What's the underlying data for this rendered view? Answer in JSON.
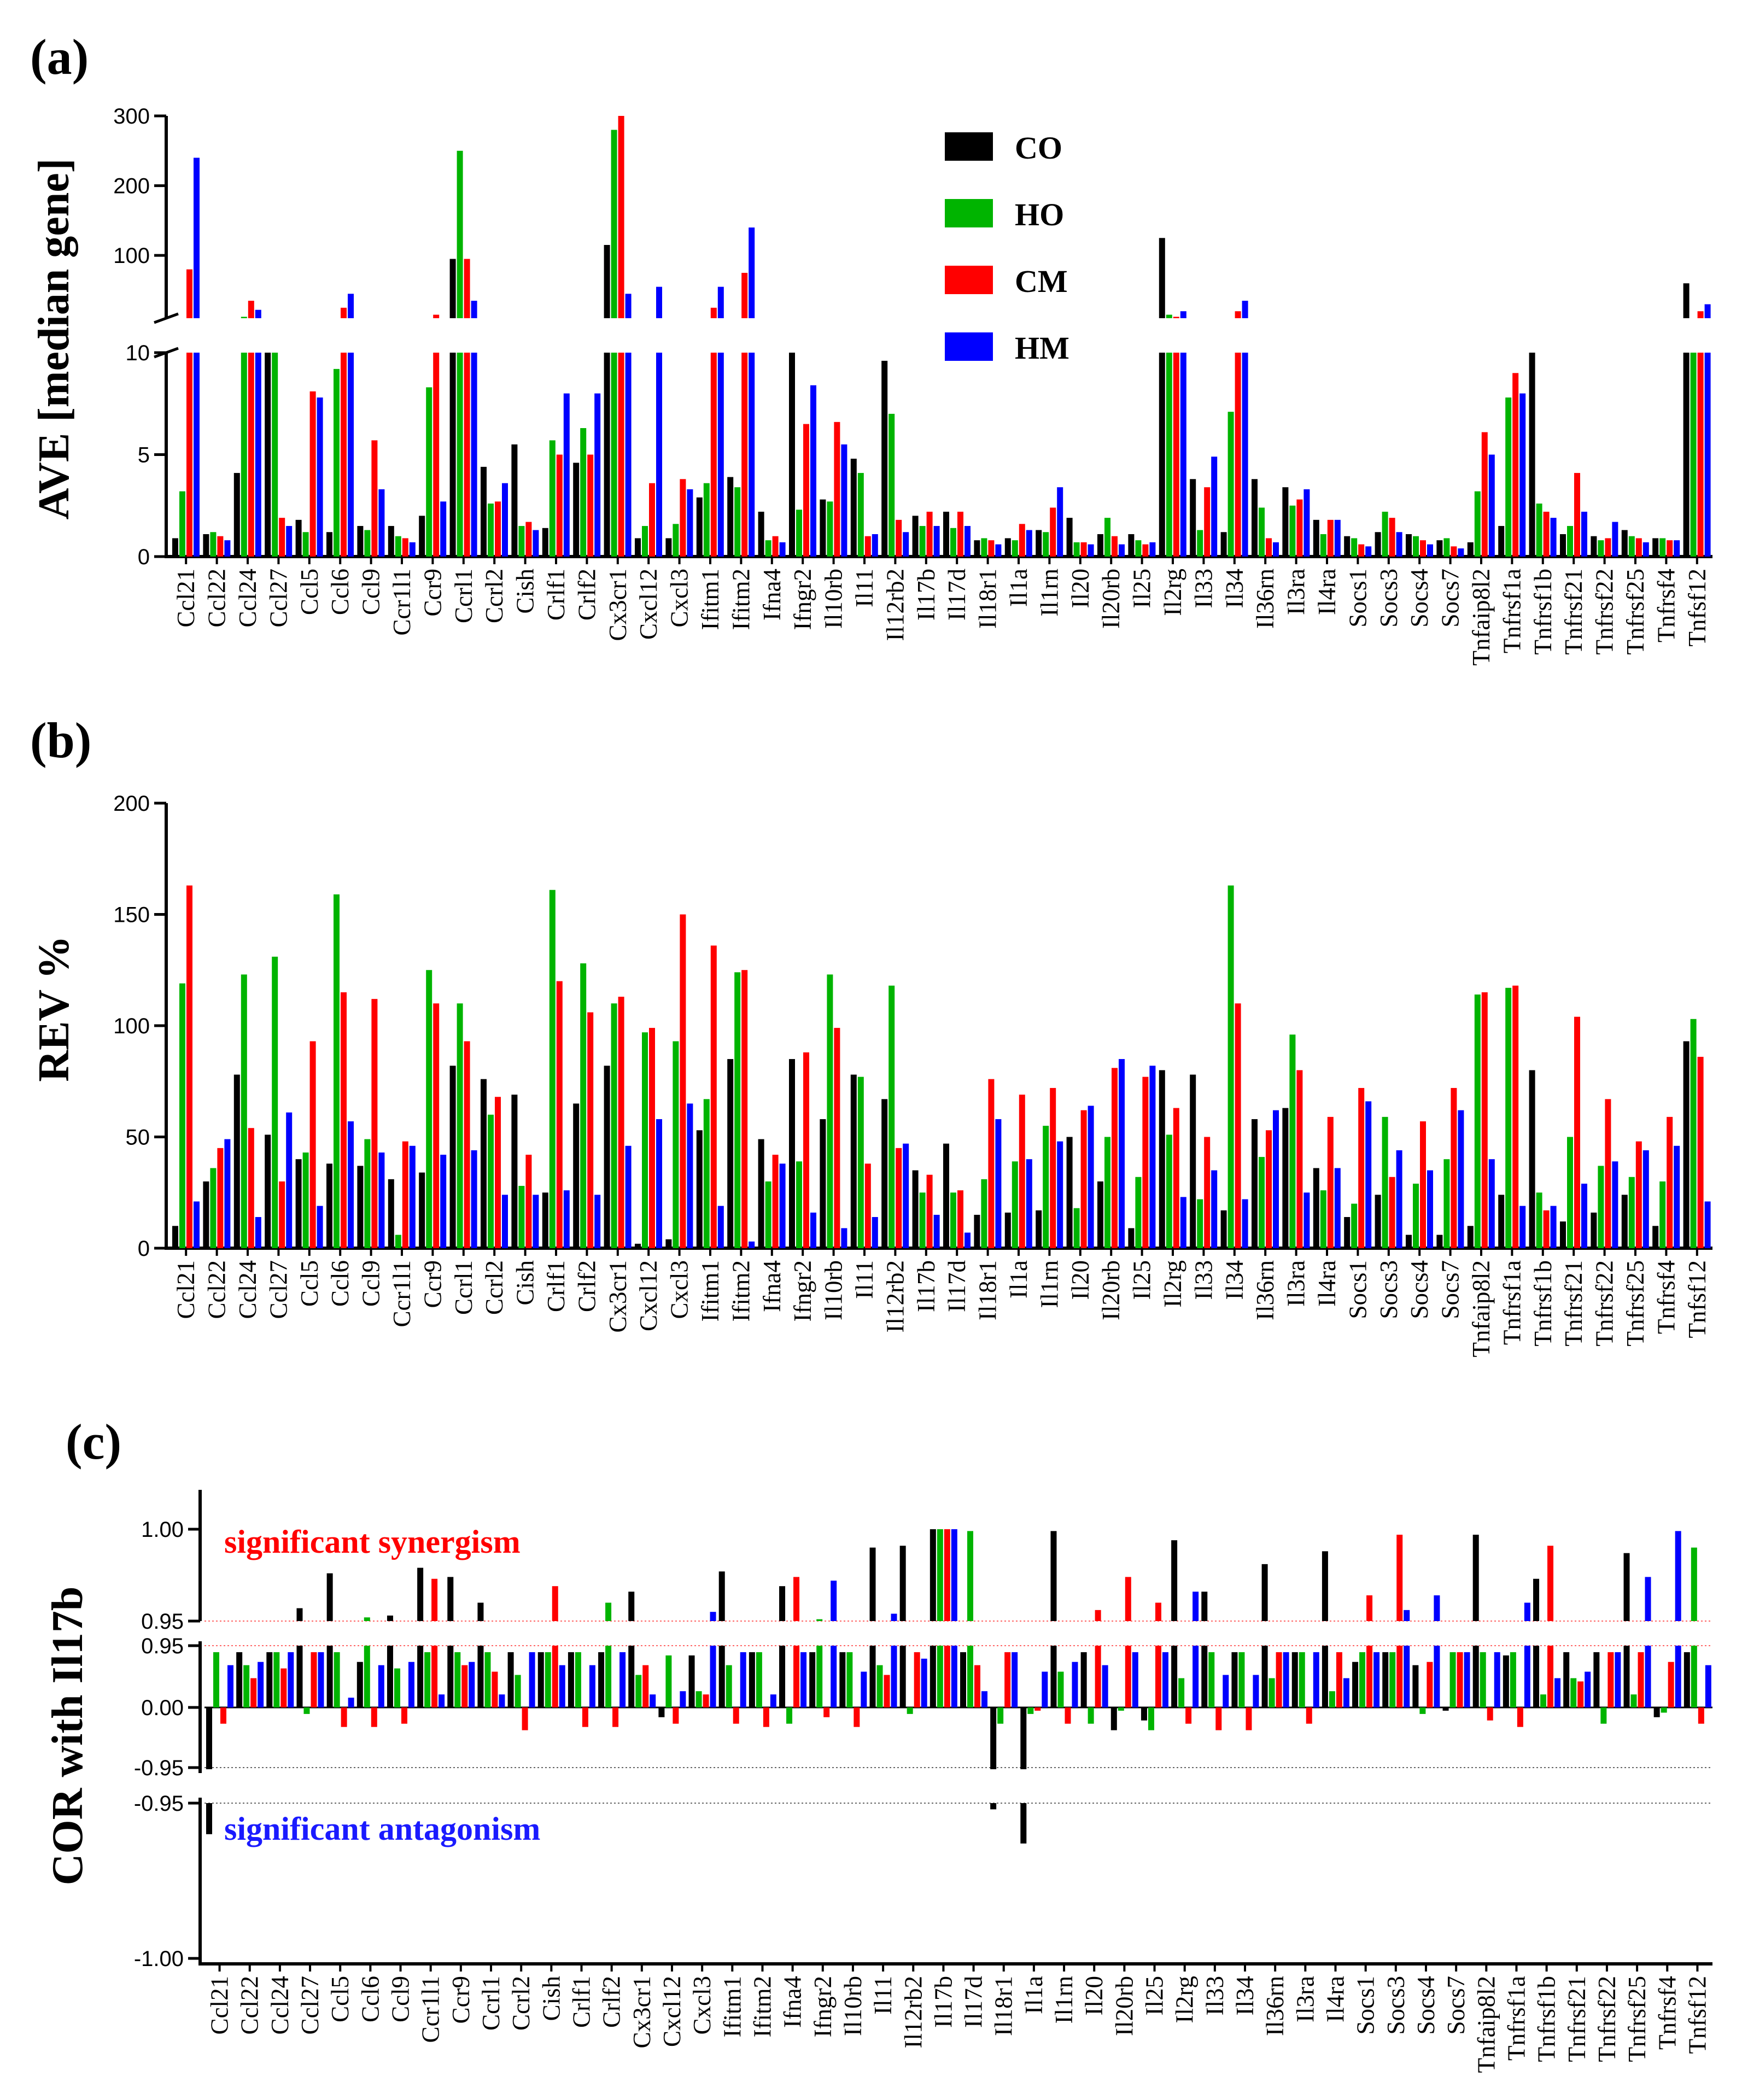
{
  "panels": {
    "a": {
      "letter": "(a)",
      "ylabel": "AVE [median gene]"
    },
    "b": {
      "letter": "(b)",
      "ylabel": "REV %"
    },
    "c": {
      "letter": "(c)",
      "ylabel": "COR with Il17b",
      "annot_syn": "significant synergism",
      "annot_ant": "significant antagonism"
    }
  },
  "colors": {
    "CO": "#000000",
    "HO": "#00b400",
    "CM": "#ff0000",
    "HM": "#0000ff",
    "syn": "#ff0000",
    "ant": "#1a1aff"
  },
  "legend": [
    "CO",
    "HO",
    "CM",
    "HM"
  ],
  "chart_data": [
    {
      "type": "bar",
      "title": "",
      "ylabel": "AVE [median gene]",
      "categories": [
        "Ccl21",
        "Ccl22",
        "Ccl24",
        "Ccl27",
        "Ccl5",
        "Ccl6",
        "Ccl9",
        "Ccr1l1",
        "Ccr9",
        "Ccrl1",
        "Ccrl2",
        "Cish",
        "Crlf1",
        "Crlf2",
        "Cx3cr1",
        "Cxcl12",
        "Cxcl3",
        "Ifitm1",
        "Ifitm2",
        "Ifna4",
        "Ifngr2",
        "Il10rb",
        "Il11",
        "Il12rb2",
        "Il17b",
        "Il17d",
        "Il18r1",
        "Il1a",
        "Il1rn",
        "Il20",
        "Il20rb",
        "Il25",
        "Il2rg",
        "Il33",
        "Il34",
        "Il36rn",
        "Il3ra",
        "Il4ra",
        "Socs1",
        "Socs3",
        "Socs4",
        "Socs7",
        "Tnfaip8l2",
        "Tnfrsf1a",
        "Tnfrsf1b",
        "Tnfrsf21",
        "Tnfrsf22",
        "Tnfrsf25",
        "Tnfrsf4",
        "Tnfsf12"
      ],
      "broken_axis": {
        "lower": [
          0,
          10
        ],
        "upper": [
          10,
          300
        ]
      },
      "yticks_lower": [
        0,
        5,
        10
      ],
      "yticks_upper": [
        100,
        200,
        300
      ],
      "legend_position": "top-center",
      "series": [
        {
          "name": "CO",
          "values": [
            0.9,
            1.1,
            4.1,
            10,
            1.8,
            1.2,
            1.5,
            1.5,
            2.0,
            95,
            4.4,
            5.5,
            1.4,
            4.6,
            115,
            0.9,
            0.9,
            2.9,
            3.9,
            2.2,
            10,
            2.8,
            4.8,
            9.6,
            2.0,
            2.2,
            0.8,
            0.9,
            1.3,
            1.9,
            1.1,
            1.1,
            125,
            3.8,
            1.2,
            3.8,
            3.4,
            1.8,
            1.0,
            1.2,
            1.1,
            0.8,
            0.7,
            1.5,
            10,
            1.1,
            1.0,
            1.3,
            0.9,
            60
          ]
        },
        {
          "name": "HO",
          "values": [
            3.2,
            1.2,
            12,
            10,
            1.2,
            9.2,
            1.3,
            1.0,
            8.3,
            250,
            2.6,
            1.5,
            5.7,
            6.3,
            280,
            1.5,
            1.6,
            3.6,
            3.4,
            0.8,
            2.3,
            2.7,
            4.1,
            7.0,
            1.5,
            1.4,
            0.9,
            0.8,
            1.2,
            0.7,
            1.9,
            0.8,
            15,
            1.3,
            7.1,
            2.4,
            2.5,
            1.1,
            0.9,
            2.2,
            1.0,
            0.9,
            3.2,
            7.8,
            2.6,
            1.5,
            0.8,
            1.0,
            0.9,
            10
          ]
        },
        {
          "name": "CM",
          "values": [
            80,
            1.0,
            35,
            1.9,
            8.1,
            25,
            5.7,
            0.9,
            15,
            95,
            2.7,
            1.7,
            5,
            5,
            300,
            3.6,
            3.8,
            25,
            75,
            1.0,
            6.5,
            6.6,
            1.0,
            1.8,
            2.2,
            2.2,
            0.8,
            1.6,
            2.4,
            0.7,
            1.0,
            0.6,
            12,
            3.4,
            20,
            0.9,
            2.8,
            1.8,
            0.6,
            1.9,
            0.8,
            0.5,
            6.1,
            9.0,
            2.2,
            4.1,
            0.9,
            0.9,
            0.8,
            20
          ]
        },
        {
          "name": "HM",
          "values": [
            240,
            0.8,
            22,
            1.5,
            7.8,
            45,
            3.3,
            0.7,
            2.7,
            35,
            3.6,
            1.3,
            8,
            8,
            45,
            55,
            3.3,
            55,
            140,
            0.7,
            8.4,
            5.5,
            1.1,
            1.2,
            1.5,
            1.5,
            0.6,
            1.3,
            3.4,
            0.6,
            0.6,
            0.7,
            20,
            4.9,
            35,
            0.7,
            3.3,
            1.8,
            0.5,
            1.2,
            0.6,
            0.4,
            5,
            8,
            1.9,
            2.2,
            1.7,
            0.7,
            0.8,
            30
          ]
        }
      ]
    },
    {
      "type": "bar",
      "title": "",
      "ylabel": "REV %",
      "categories": [
        "Ccl21",
        "Ccl22",
        "Ccl24",
        "Ccl27",
        "Ccl5",
        "Ccl6",
        "Ccl9",
        "Ccr1l1",
        "Ccr9",
        "Ccrl1",
        "Ccrl2",
        "Cish",
        "Crlf1",
        "Crlf2",
        "Cx3cr1",
        "Cxcl12",
        "Cxcl3",
        "Ifitm1",
        "Ifitm2",
        "Ifna4",
        "Ifngr2",
        "Il10rb",
        "Il11",
        "Il12rb2",
        "Il17b",
        "Il17d",
        "Il18r1",
        "Il1a",
        "Il1rn",
        "Il20",
        "Il20rb",
        "Il25",
        "Il2rg",
        "Il33",
        "Il34",
        "Il36rn",
        "Il3ra",
        "Il4ra",
        "Socs1",
        "Socs3",
        "Socs4",
        "Socs7",
        "Tnfaip8l2",
        "Tnfrsf1a",
        "Tnfrsf1b",
        "Tnfrsf21",
        "Tnfrsf22",
        "Tnfrsf25",
        "Tnfrsf4",
        "Tnfsf12"
      ],
      "ylim": [
        0,
        200
      ],
      "yticks": [
        0,
        50,
        100,
        150,
        200
      ],
      "series": [
        {
          "name": "CO",
          "values": [
            10,
            30,
            78,
            51,
            40,
            38,
            37,
            31,
            34,
            82,
            76,
            69,
            25,
            65,
            82,
            2,
            4,
            53,
            85,
            49,
            85,
            58,
            78,
            67,
            35,
            47,
            15,
            16,
            17,
            50,
            30,
            9,
            80,
            78,
            17,
            58,
            63,
            36,
            14,
            24,
            6,
            6,
            10,
            24,
            80,
            12,
            16,
            24,
            10,
            93
          ]
        },
        {
          "name": "HO",
          "values": [
            119,
            36,
            123,
            131,
            43,
            159,
            49,
            6,
            125,
            110,
            60,
            28,
            161,
            128,
            110,
            97,
            93,
            67,
            124,
            30,
            39,
            123,
            77,
            118,
            25,
            25,
            31,
            39,
            55,
            18,
            50,
            32,
            51,
            22,
            163,
            41,
            96,
            26,
            20,
            59,
            29,
            40,
            114,
            117,
            25,
            50,
            37,
            32,
            30,
            103
          ]
        },
        {
          "name": "CM",
          "values": [
            163,
            45,
            54,
            30,
            93,
            115,
            112,
            48,
            110,
            93,
            68,
            42,
            120,
            106,
            113,
            99,
            150,
            136,
            125,
            42,
            88,
            99,
            38,
            45,
            33,
            26,
            76,
            69,
            72,
            62,
            81,
            77,
            63,
            50,
            110,
            53,
            80,
            59,
            72,
            32,
            57,
            72,
            115,
            118,
            17,
            104,
            67,
            48,
            59,
            86
          ]
        },
        {
          "name": "HM",
          "values": [
            21,
            49,
            14,
            61,
            19,
            57,
            43,
            46,
            42,
            44,
            24,
            24,
            26,
            24,
            46,
            58,
            65,
            19,
            3,
            38,
            16,
            9,
            14,
            47,
            15,
            7,
            58,
            40,
            48,
            64,
            85,
            82,
            23,
            35,
            22,
            62,
            25,
            36,
            66,
            44,
            35,
            62,
            40,
            19,
            19,
            29,
            39,
            44,
            46,
            21
          ]
        }
      ]
    },
    {
      "type": "bar",
      "title": "",
      "ylabel": "COR with Il17b",
      "categories": [
        "Ccl21",
        "Ccl22",
        "Ccl24",
        "Ccl27",
        "Ccl5",
        "Ccl6",
        "Ccl9",
        "Ccr1l1",
        "Ccr9",
        "Ccrl1",
        "Ccrl2",
        "Cish",
        "Crlf1",
        "Crlf2",
        "Cx3cr1",
        "Cxcl12",
        "Cxcl3",
        "Ifitm1",
        "Ifitm2",
        "Ifna4",
        "Ifngr2",
        "Il10rb",
        "Il11",
        "Il12rb2",
        "Il17b",
        "Il17d",
        "Il18r1",
        "Il1a",
        "Il1rn",
        "Il20",
        "Il20rb",
        "Il25",
        "Il2rg",
        "Il33",
        "Il34",
        "Il36rn",
        "Il3ra",
        "Il4ra",
        "Socs1",
        "Socs3",
        "Socs4",
        "Socs7",
        "Tnfaip8l2",
        "Tnfrsf1a",
        "Tnfrsf1b",
        "Tnfrsf21",
        "Tnfrsf22",
        "Tnfrsf25",
        "Tnfrsf4",
        "Tnfsf12"
      ],
      "broken_axis": {
        "lower": [
          -0.95,
          0.95
        ],
        "top": [
          0.95,
          1.0
        ],
        "bottom": [
          -1.0,
          -0.95
        ]
      },
      "yticks": [
        "1.00",
        "0.95",
        "0.95",
        "0.00",
        "-0.95",
        "-0.95",
        "-1.00"
      ],
      "series": [
        {
          "name": "CO",
          "values": [
            -0.96,
            0.85,
            0.85,
            0.957,
            0.976,
            0.7,
            0.953,
            0.979,
            0.974,
            0.96,
            0.85,
            0.85,
            0.85,
            0.85,
            0.966,
            -0.15,
            0.8,
            0.977,
            0.85,
            0.969,
            0.85,
            0.85,
            0.99,
            0.991,
            1.0,
            0.85,
            -0.952,
            -0.963,
            0.999,
            0.85,
            -0.35,
            -0.2,
            0.994,
            0.966,
            0.85,
            0.981,
            0.85,
            0.988,
            0.7,
            0.85,
            0.65,
            -0.05,
            0.997,
            0.8,
            0.973,
            0.85,
            0.85,
            0.987,
            -0.15,
            0.85
          ]
        },
        {
          "name": "HO",
          "values": [
            0.85,
            0.65,
            0.85,
            -0.1,
            0.85,
            0.952,
            0.6,
            0.85,
            0.85,
            0.85,
            0.5,
            0.85,
            0.85,
            0.96,
            0.5,
            0.8,
            0.25,
            0.65,
            0.85,
            -0.25,
            0.951,
            0.85,
            0.65,
            -0.1,
            1.0,
            0.999,
            -0.25,
            -0.1,
            0.55,
            -0.25,
            -0.05,
            -0.35,
            0.45,
            0.85,
            0.85,
            0.45,
            0.85,
            0.25,
            0.85,
            0.85,
            -0.1,
            0.85,
            0.85,
            0.85,
            0.2,
            0.45,
            -0.25,
            0.2,
            -0.08,
            0.99
          ]
        },
        {
          "name": "CM",
          "values": [
            -0.25,
            0.45,
            0.6,
            0.85,
            -0.3,
            -0.3,
            -0.25,
            0.973,
            0.65,
            0.55,
            -0.35,
            0.969,
            -0.3,
            -0.3,
            0.65,
            -0.25,
            0.2,
            -0.25,
            -0.3,
            0.974,
            -0.15,
            -0.3,
            0.5,
            0.85,
            1.0,
            0.65,
            0.85,
            -0.05,
            -0.25,
            0.956,
            0.974,
            0.96,
            -0.25,
            -0.35,
            -0.35,
            0.85,
            -0.25,
            0.85,
            0.964,
            0.997,
            0.7,
            0.85,
            -0.2,
            -0.3,
            0.991,
            0.4,
            0.85,
            0.85,
            0.7,
            -0.25
          ]
        },
        {
          "name": "HM",
          "values": [
            0.65,
            0.7,
            0.85,
            0.85,
            0.15,
            0.65,
            0.7,
            0.2,
            0.7,
            0.2,
            0.85,
            0.65,
            0.65,
            0.85,
            0.2,
            0.25,
            0.955,
            0.85,
            0.2,
            0.85,
            0.972,
            0.55,
            0.954,
            0.75,
            1.0,
            0.25,
            0.85,
            0.55,
            0.7,
            0.65,
            0.85,
            0.85,
            0.966,
            0.5,
            0.5,
            0.85,
            0.85,
            0.45,
            0.85,
            0.956,
            0.964,
            0.85,
            0.85,
            0.96,
            0.45,
            0.55,
            0.85,
            0.974,
            0.999,
            0.65
          ]
        }
      ]
    }
  ]
}
